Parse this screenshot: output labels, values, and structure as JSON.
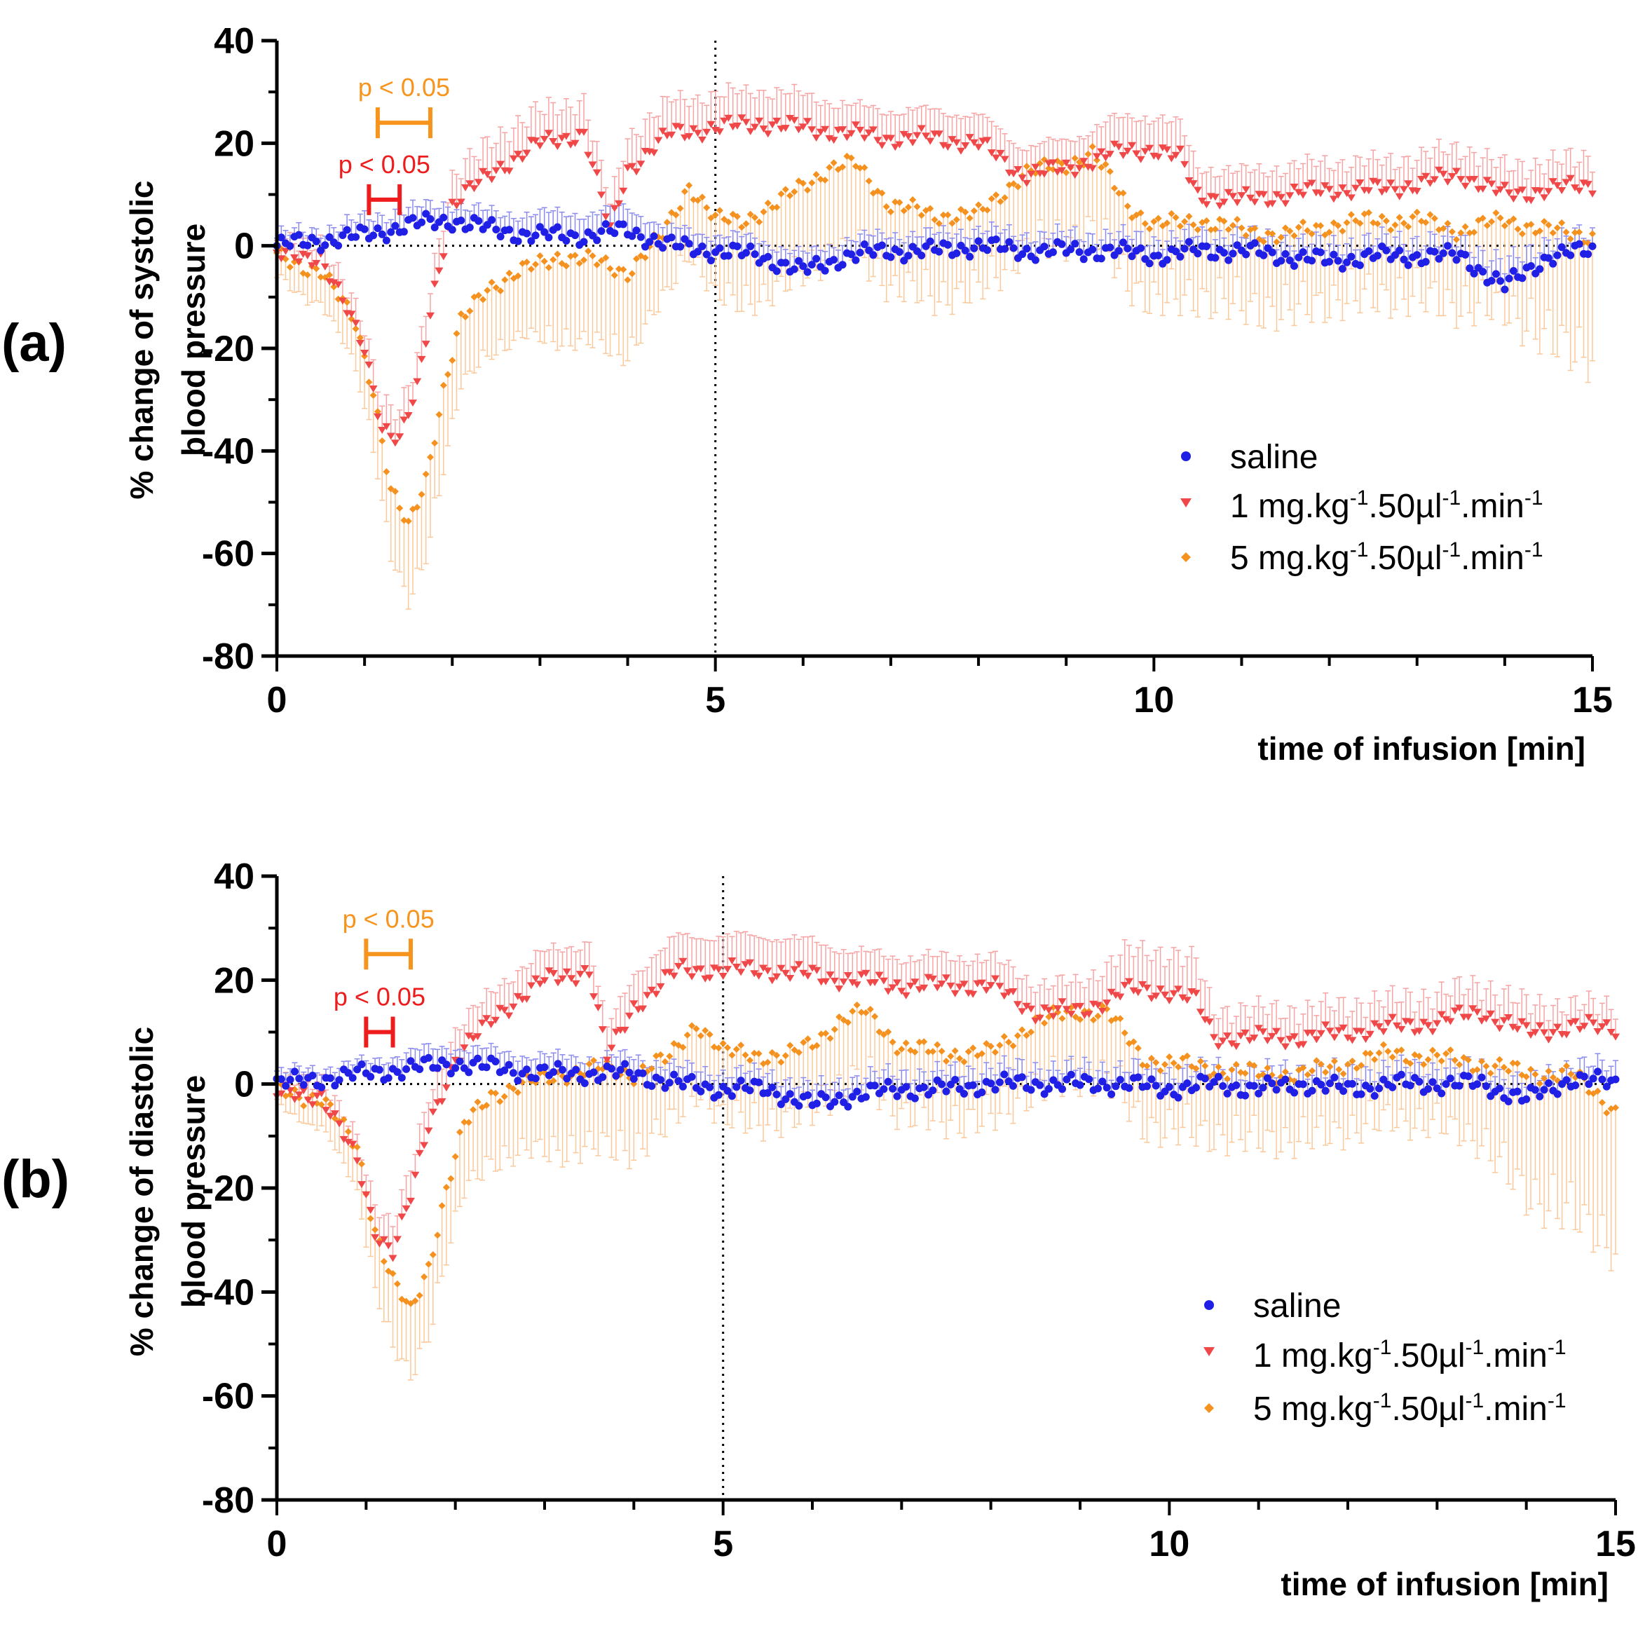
{
  "colors": {
    "saline": "#1f1fe6",
    "dose1": "#f04848",
    "dose5": "#f5921f",
    "dose1_err": "#f7a3a3",
    "dose5_err": "#fbc89a",
    "saline_err": "#8b8bf0",
    "pval_red": "#ee1c1c",
    "pval_orange": "#f7941d"
  },
  "chart_data": [
    {
      "type": "scatter",
      "panel_label": "(a)",
      "ylabel_line1": "% change of systolic",
      "ylabel_line2": "blood pressure",
      "xlabel": "time of infusion [min]",
      "xlim": [
        0,
        15
      ],
      "ylim": [
        -80,
        40
      ],
      "x_ticks": [
        "0",
        "5",
        "10",
        "15"
      ],
      "y_ticks": [
        "-80",
        "-60",
        "-40",
        "-20",
        "0",
        "20",
        "40"
      ],
      "reference_lines": {
        "x": 5,
        "y": 0
      },
      "legend": {
        "position": "lower-right",
        "entries": [
          "saline",
          "1 mg.kg-1.50µl-1.min-1",
          "5 mg.kg-1.50µl-1.min-1"
        ]
      },
      "annotations": [
        {
          "text": "p < 0.05",
          "color": "orange",
          "x_start": 1.15,
          "x_end": 1.75,
          "y": 24
        },
        {
          "text": "p < 0.05",
          "color": "red",
          "x_start": 1.05,
          "x_end": 1.4,
          "y": 9
        }
      ],
      "series": [
        {
          "name": "saline",
          "x": [
            0,
            0.5,
            1,
            1.5,
            2,
            2.5,
            3,
            3.5,
            4,
            4.5,
            5,
            5.5,
            6,
            6.5,
            7,
            7.5,
            8,
            8.5,
            9,
            9.5,
            10,
            10.5,
            11,
            11.5,
            12,
            12.5,
            13,
            13.5,
            14,
            14.5,
            15
          ],
          "y": [
            0,
            1,
            2,
            4,
            5,
            3,
            2,
            2,
            3,
            0,
            -1,
            -2,
            -5,
            -2,
            -1,
            -1,
            0,
            -1,
            -1,
            -1,
            -2,
            -1,
            -1,
            -2,
            -3,
            -2,
            -2,
            -2,
            -8,
            -2,
            -1
          ],
          "err": [
            2,
            2,
            3,
            3,
            3,
            3,
            4,
            4,
            4,
            3,
            3,
            3,
            3,
            3,
            3,
            3,
            3,
            3,
            3,
            3,
            3,
            3,
            3,
            3,
            3,
            3,
            3,
            3,
            4,
            3,
            3
          ]
        },
        {
          "name": "1 mg.kg-1.50µl-1.min-1",
          "x": [
            0,
            0.5,
            1,
            1.2,
            1.4,
            1.6,
            1.8,
            2,
            2.5,
            3,
            3.5,
            3.8,
            4,
            4.5,
            5,
            5.5,
            6,
            6.5,
            7,
            7.5,
            8,
            8.5,
            9,
            9.5,
            10,
            10.3,
            10.5,
            11,
            11.5,
            12,
            12.5,
            13,
            13.5,
            14,
            14.5,
            15
          ],
          "y": [
            -2,
            -2,
            -20,
            -35,
            -38,
            -28,
            -8,
            8,
            15,
            20,
            22,
            3,
            15,
            22,
            23,
            24,
            23,
            22,
            21,
            21,
            20,
            14,
            15,
            18,
            19,
            17,
            10,
            9,
            10,
            11,
            11,
            12,
            14,
            10,
            11,
            12
          ],
          "err": [
            2,
            3,
            4,
            5,
            5,
            5,
            5,
            5,
            6,
            6,
            6,
            5,
            6,
            6,
            6,
            6,
            6,
            5,
            5,
            5,
            5,
            5,
            5,
            6,
            6,
            6,
            5,
            5,
            5,
            5,
            5,
            5,
            5,
            5,
            5,
            5
          ]
        },
        {
          "name": "5 mg.kg-1.50µl-1.min-1",
          "x": [
            0,
            0.5,
            0.9,
            1.1,
            1.3,
            1.5,
            1.7,
            1.9,
            2.1,
            2.4,
            2.8,
            3.2,
            3.6,
            4,
            4.4,
            4.7,
            5,
            5.3,
            5.7,
            6,
            6.3,
            6.6,
            7,
            7.5,
            8,
            8.5,
            9,
            9.3,
            9.7,
            10,
            10.5,
            11,
            11.5,
            12,
            12.5,
            13,
            13.5,
            14,
            14.5,
            15
          ],
          "y": [
            -2,
            -5,
            -15,
            -28,
            -48,
            -55,
            -45,
            -28,
            -15,
            -8,
            -5,
            -2,
            -3,
            -5,
            2,
            12,
            5,
            5,
            8,
            12,
            15,
            16,
            8,
            6,
            6,
            14,
            16,
            18,
            8,
            4,
            5,
            3,
            2,
            4,
            5,
            5,
            3,
            5,
            3,
            2
          ],
          "err": [
            4,
            6,
            8,
            10,
            12,
            14,
            14,
            14,
            12,
            12,
            12,
            15,
            15,
            15,
            12,
            12,
            14,
            15,
            16,
            16,
            16,
            16,
            15,
            15,
            14,
            14,
            14,
            14,
            14,
            14,
            14,
            14,
            14,
            14,
            14,
            14,
            14,
            16,
            20,
            22
          ]
        }
      ]
    },
    {
      "type": "scatter",
      "panel_label": "(b)",
      "ylabel_line1": "% change of diastolic",
      "ylabel_line2": "blood pressure",
      "xlabel": "time of infusion [min]",
      "xlim": [
        0,
        15
      ],
      "ylim": [
        -80,
        40
      ],
      "x_ticks": [
        "0",
        "5",
        "10",
        "15"
      ],
      "y_ticks": [
        "-80",
        "-60",
        "-40",
        "-20",
        "0",
        "20",
        "40"
      ],
      "reference_lines": {
        "x": 5,
        "y": 0
      },
      "legend": {
        "position": "lower-right",
        "entries": [
          "saline",
          "1 mg.kg-1.50µl-1.min-1",
          "5 mg.kg-1.50µl-1.min-1"
        ]
      },
      "annotations": [
        {
          "text": "p < 0.05",
          "color": "orange",
          "x_start": 1.0,
          "x_end": 1.5,
          "y": 25
        },
        {
          "text": "p < 0.05",
          "color": "red",
          "x_start": 1.0,
          "x_end": 1.3,
          "y": 10
        }
      ],
      "series": [
        {
          "name": "saline",
          "x": [
            0,
            0.5,
            1,
            1.5,
            2,
            2.5,
            3,
            3.5,
            4,
            4.5,
            5,
            5.5,
            6,
            6.5,
            7,
            7.5,
            8,
            8.5,
            9,
            9.5,
            10,
            10.5,
            11,
            11.5,
            12,
            12.5,
            13,
            13.5,
            14,
            14.5,
            15
          ],
          "y": [
            0,
            1,
            2,
            3,
            4,
            3,
            2,
            2,
            2,
            0,
            -1,
            -1,
            -4,
            -2,
            -1,
            -1,
            0,
            0,
            0,
            0,
            -1,
            0,
            -1,
            0,
            -1,
            0,
            0,
            0,
            -3,
            1,
            0
          ],
          "err": [
            2,
            2,
            2,
            3,
            3,
            3,
            3,
            3,
            3,
            3,
            3,
            3,
            3,
            3,
            3,
            3,
            3,
            3,
            3,
            3,
            3,
            3,
            3,
            3,
            3,
            3,
            3,
            3,
            3,
            3,
            3
          ]
        },
        {
          "name": "1 mg.kg-1.50µl-1.min-1",
          "x": [
            0,
            0.5,
            0.9,
            1.1,
            1.3,
            1.5,
            1.7,
            2,
            2.5,
            3,
            3.5,
            3.7,
            4,
            4.5,
            5,
            5.5,
            6,
            6.5,
            7,
            7.5,
            8,
            8.5,
            9,
            9.5,
            10,
            10.3,
            10.5,
            11,
            11.5,
            12,
            12.5,
            13,
            13.5,
            14,
            14.5,
            15
          ],
          "y": [
            -2,
            -2,
            -15,
            -28,
            -32,
            -22,
            -8,
            5,
            14,
            20,
            22,
            5,
            15,
            22,
            22,
            22,
            21,
            20,
            19,
            19,
            19,
            14,
            14,
            18,
            18,
            16,
            9,
            9,
            9,
            10,
            11,
            12,
            14,
            10,
            11,
            11
          ],
          "err": [
            2,
            3,
            4,
            5,
            5,
            5,
            5,
            5,
            5,
            5,
            5,
            5,
            6,
            6,
            6,
            6,
            6,
            5,
            5,
            5,
            5,
            5,
            5,
            7,
            7,
            7,
            5,
            5,
            5,
            5,
            5,
            5,
            5,
            5,
            4,
            4
          ]
        },
        {
          "name": "5 mg.kg-1.50µl-1.min-1",
          "x": [
            0,
            0.5,
            0.9,
            1.1,
            1.3,
            1.5,
            1.7,
            1.9,
            2.1,
            2.4,
            2.8,
            3.2,
            3.6,
            4,
            4.4,
            4.7,
            5,
            5.3,
            5.7,
            6,
            6.3,
            6.6,
            7,
            7.5,
            8,
            8.5,
            9,
            9.3,
            9.7,
            10,
            10.5,
            11,
            11.5,
            12,
            12.5,
            13,
            13.5,
            14,
            14.5,
            15
          ],
          "y": [
            -1,
            -3,
            -12,
            -28,
            -38,
            -44,
            -35,
            -20,
            -8,
            -2,
            0,
            2,
            3,
            2,
            5,
            12,
            6,
            6,
            5,
            8,
            12,
            14,
            7,
            6,
            6,
            12,
            14,
            14,
            5,
            4,
            3,
            2,
            2,
            4,
            6,
            5,
            4,
            2,
            2,
            -5
          ],
          "err": [
            3,
            5,
            8,
            10,
            12,
            12,
            12,
            12,
            12,
            12,
            12,
            14,
            14,
            14,
            12,
            12,
            12,
            12,
            12,
            12,
            12,
            12,
            12,
            12,
            12,
            12,
            12,
            12,
            12,
            12,
            12,
            12,
            12,
            12,
            12,
            12,
            14,
            22,
            25,
            25
          ]
        }
      ]
    }
  ]
}
